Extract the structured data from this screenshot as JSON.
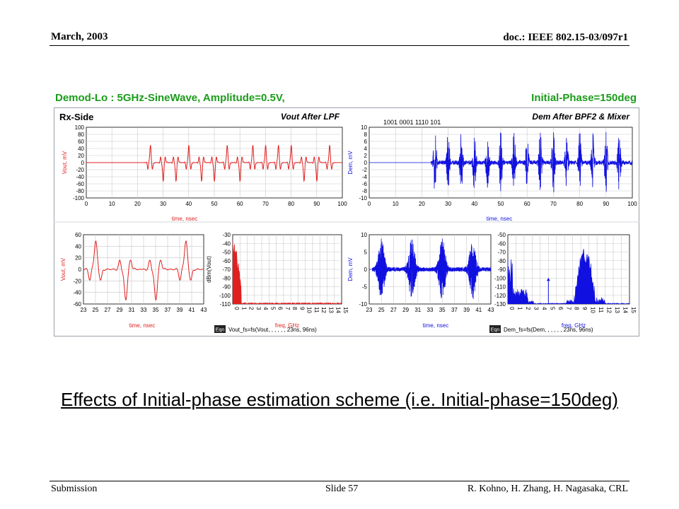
{
  "header": {
    "date": "March, 2003",
    "doc": "doc.: IEEE 802.15-03/097r1"
  },
  "footer": {
    "left": "Submission",
    "center": "Slide 57",
    "right": "R. Kohno, H. Zhang, H. Nagasaka, CRL"
  },
  "figure": {
    "title_left": "Demod-Lo : 5GHz-SineWave, Amplitude=0.5V,",
    "title_right": "Initial-Phase=150deg",
    "rx_side_label": "Rx-Side",
    "eqn_badge": "Eqn",
    "colors": {
      "red": "#e02020",
      "blue": "#1010e0",
      "green": "#1a9c1a",
      "frame": "#9aa0a8"
    }
  },
  "caption": "Effects of Initial-phase estimation scheme (i.e. Initial-phase=150deg)",
  "chart_data": [
    {
      "type": "line",
      "title": "Vout After LPF",
      "xlabel": "time, nsec",
      "ylabel": "Vout, mV",
      "xlim": [
        0,
        100
      ],
      "ylim": [
        -100,
        100
      ],
      "x_ticks": [
        "0",
        "10",
        "20",
        "30",
        "40",
        "50",
        "60",
        "70",
        "80",
        "90",
        "100"
      ],
      "y_ticks": [
        "100",
        "80",
        "60",
        "40",
        "20",
        "0",
        "-20",
        "-40",
        "-60",
        "-80",
        "-100"
      ],
      "grid": true,
      "color": "#e02020",
      "pulses_pos": [
        25,
        40,
        55,
        65,
        70,
        75,
        80,
        95
      ],
      "pulses_neg": [
        30,
        35,
        45,
        50,
        60,
        85,
        90
      ]
    },
    {
      "type": "line",
      "title": "Dem After BPF2 & Mixer",
      "annotation": "1001 0001 1110 101",
      "xlabel": "time, nsec",
      "ylabel": "Dem, mV",
      "xlim": [
        0,
        100
      ],
      "ylim": [
        -10,
        10
      ],
      "x_ticks": [
        "0",
        "10",
        "20",
        "30",
        "40",
        "50",
        "60",
        "70",
        "80",
        "90",
        "100"
      ],
      "y_ticks": [
        "10",
        "8",
        "6",
        "4",
        "2",
        "0",
        "-2",
        "-4",
        "-6",
        "-8",
        "-10"
      ],
      "grid": true,
      "color": "#1010e0",
      "bursts": [
        25,
        30,
        35,
        40,
        45,
        50,
        55,
        60,
        65,
        70,
        75,
        80,
        85,
        90,
        95
      ]
    },
    {
      "type": "line",
      "xlabel": "time, nsec",
      "ylabel": "Vout, mV",
      "xlim": [
        23,
        43
      ],
      "ylim": [
        -60,
        60
      ],
      "x_ticks": [
        "23",
        "25",
        "27",
        "29",
        "31",
        "33",
        "35",
        "37",
        "39",
        "41",
        "43"
      ],
      "y_ticks": [
        "60",
        "40",
        "20",
        "0",
        "-20",
        "-40",
        "-60"
      ],
      "grid": true,
      "color": "#e02020",
      "pulses_pos": [
        25,
        40
      ],
      "pulses_neg": [
        30,
        35
      ]
    },
    {
      "type": "area",
      "xlabel": "freq, GHz",
      "ylabel": "dBm(Vout)",
      "xlim": [
        0,
        15
      ],
      "ylim": [
        -110,
        -30
      ],
      "x_ticks": [
        "0",
        "1",
        "2",
        "3",
        "4",
        "5",
        "6",
        "7",
        "8",
        "9",
        "10",
        "11",
        "12",
        "13",
        "14",
        "15"
      ],
      "y_ticks": [
        "-30",
        "-40",
        "-50",
        "-60",
        "-70",
        "-80",
        "-90",
        "-100",
        "-110"
      ],
      "grid": true,
      "color": "#e02020",
      "equation": "Vout_fs=fs(Vout, , , , , , 23ns, 96ns)"
    },
    {
      "type": "line",
      "xlabel": "time, nsec",
      "ylabel": "Dem, mV",
      "xlim": [
        23,
        43
      ],
      "ylim": [
        -10,
        10
      ],
      "x_ticks": [
        "23",
        "25",
        "27",
        "29",
        "31",
        "33",
        "35",
        "37",
        "39",
        "41",
        "43"
      ],
      "y_ticks": [
        "10",
        "5",
        "0",
        "-5",
        "-10"
      ],
      "grid": true,
      "color": "#1010e0",
      "bursts": [
        25,
        30,
        35,
        40
      ]
    },
    {
      "type": "area",
      "xlabel": "freq, GHz",
      "xlim": [
        0,
        15
      ],
      "ylim": [
        -130,
        -50
      ],
      "x_ticks": [
        "0",
        "1",
        "2",
        "3",
        "4",
        "5",
        "6",
        "7",
        "8",
        "9",
        "10",
        "11",
        "12",
        "13",
        "14",
        "15"
      ],
      "y_ticks": [
        "-50",
        "-60",
        "-70",
        "-80",
        "-90",
        "-100",
        "-110",
        "-120",
        "-130"
      ],
      "grid": true,
      "color": "#1010e0",
      "equation": "Dem_fs=fs(Dem, , , , , , 23ns, 96ns)"
    }
  ]
}
